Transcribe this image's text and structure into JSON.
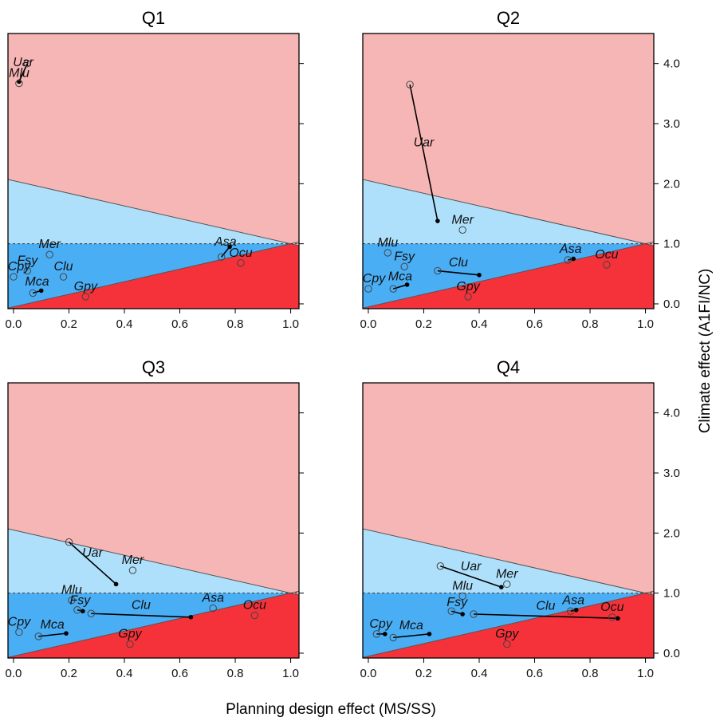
{
  "colors": {
    "region_top": "#f7b6b6",
    "region_light_blue": "#aee0fb",
    "region_blue": "#4aaef5",
    "region_red": "#f5313a",
    "frame": "#000000",
    "ref_line": "#555555"
  },
  "figure": {
    "xlabel": "Planning design effect (MS/SS)",
    "ylabel": "Climate effect (A1FI/NC)"
  },
  "chart_data": [
    {
      "type": "scatter",
      "title": "Q1",
      "xlim": [
        -0.02,
        1.03
      ],
      "ylim": [
        -0.08,
        4.5
      ],
      "xticks": [
        "0.0",
        "0.2",
        "0.4",
        "0.6",
        "0.8",
        "1.0"
      ],
      "yticks": [
        "0.0",
        "1.0",
        "2.0",
        "3.0",
        "4.0"
      ],
      "reference_lines": {
        "upper": [
          [
            0,
            2.05
          ],
          [
            1,
            1
          ]
        ],
        "lower": [
          [
            0,
            -0.05
          ],
          [
            1,
            1
          ]
        ],
        "dashed_y": 1.0
      },
      "species": [
        {
          "label": "Uar",
          "ms": [
            0.02,
            3.7
          ],
          "ss": [
            0.05,
            4.0
          ]
        },
        {
          "label": "Mlu",
          "ms": [
            0.02,
            3.67
          ],
          "ss": [
            0.02,
            3.67
          ]
        },
        {
          "label": "Mer",
          "ms": [
            0.13,
            0.82
          ],
          "ss": [
            0.13,
            0.82
          ]
        },
        {
          "label": "Fsy",
          "ms": [
            0.05,
            0.55
          ],
          "ss": [
            0.05,
            0.55
          ]
        },
        {
          "label": "Cpy",
          "ms": [
            0.0,
            0.45
          ],
          "ss": [
            0.0,
            0.45
          ]
        },
        {
          "label": "Clu",
          "ms": [
            0.18,
            0.45
          ],
          "ss": [
            0.18,
            0.45
          ]
        },
        {
          "label": "Mca",
          "ms": [
            0.1,
            0.22
          ],
          "ss": [
            0.07,
            0.18
          ]
        },
        {
          "label": "Gpy",
          "ms": [
            0.26,
            0.12
          ],
          "ss": [
            0.26,
            0.12
          ]
        },
        {
          "label": "Asa",
          "ms": [
            0.78,
            0.95
          ],
          "ss": [
            0.75,
            0.78
          ]
        },
        {
          "label": "Ocu",
          "ms": [
            0.82,
            0.68
          ],
          "ss": [
            0.82,
            0.68
          ]
        }
      ]
    },
    {
      "type": "scatter",
      "title": "Q2",
      "xlim": [
        -0.02,
        1.03
      ],
      "ylim": [
        -0.08,
        4.5
      ],
      "xticks": [
        "0.0",
        "0.2",
        "0.4",
        "0.6",
        "0.8",
        "1.0"
      ],
      "yticks": [
        "0.0",
        "1.0",
        "2.0",
        "3.0",
        "4.0"
      ],
      "reference_lines": {
        "upper": [
          [
            0,
            2.05
          ],
          [
            1,
            1
          ]
        ],
        "lower": [
          [
            0,
            -0.05
          ],
          [
            1,
            1
          ]
        ],
        "dashed_y": 1.0
      },
      "species": [
        {
          "label": "Uar",
          "ms": [
            0.25,
            1.38
          ],
          "ss": [
            0.15,
            3.65
          ]
        },
        {
          "label": "Mer",
          "ms": [
            0.34,
            1.23
          ],
          "ss": [
            0.34,
            1.23
          ]
        },
        {
          "label": "Mlu",
          "ms": [
            0.07,
            0.85
          ],
          "ss": [
            0.07,
            0.85
          ]
        },
        {
          "label": "Fsy",
          "ms": [
            0.13,
            0.62
          ],
          "ss": [
            0.13,
            0.62
          ]
        },
        {
          "label": "Clu",
          "ms": [
            0.4,
            0.48
          ],
          "ss": [
            0.25,
            0.55
          ]
        },
        {
          "label": "Cpy",
          "ms": [
            0.0,
            0.25
          ],
          "ss": [
            0.0,
            0.25
          ]
        },
        {
          "label": "Mca",
          "ms": [
            0.14,
            0.32
          ],
          "ss": [
            0.09,
            0.25
          ]
        },
        {
          "label": "Gpy",
          "ms": [
            0.36,
            0.12
          ],
          "ss": [
            0.36,
            0.12
          ]
        },
        {
          "label": "Asa",
          "ms": [
            0.74,
            0.75
          ],
          "ss": [
            0.72,
            0.73
          ]
        },
        {
          "label": "Ocu",
          "ms": [
            0.86,
            0.65
          ],
          "ss": [
            0.86,
            0.65
          ]
        }
      ]
    },
    {
      "type": "scatter",
      "title": "Q3",
      "xlim": [
        -0.02,
        1.03
      ],
      "ylim": [
        -0.08,
        4.5
      ],
      "xticks": [
        "0.0",
        "0.2",
        "0.4",
        "0.6",
        "0.8",
        "1.0"
      ],
      "yticks": [
        "0.0",
        "1.0",
        "2.0",
        "3.0",
        "4.0"
      ],
      "reference_lines": {
        "upper": [
          [
            0,
            2.05
          ],
          [
            1,
            1
          ]
        ],
        "lower": [
          [
            0,
            -0.05
          ],
          [
            1,
            1
          ]
        ],
        "dashed_y": 1.0
      },
      "species": [
        {
          "label": "Uar",
          "ms": [
            0.37,
            1.15
          ],
          "ss": [
            0.2,
            1.85
          ]
        },
        {
          "label": "Mer",
          "ms": [
            0.43,
            1.38
          ],
          "ss": [
            0.43,
            1.38
          ]
        },
        {
          "label": "Mlu",
          "ms": [
            0.21,
            0.88
          ],
          "ss": [
            0.21,
            0.88
          ]
        },
        {
          "label": "Fsy",
          "ms": [
            0.25,
            0.7
          ],
          "ss": [
            0.23,
            0.72
          ]
        },
        {
          "label": "Clu",
          "ms": [
            0.64,
            0.6
          ],
          "ss": [
            0.28,
            0.66
          ]
        },
        {
          "label": "Asa",
          "ms": [
            0.72,
            0.75
          ],
          "ss": [
            0.72,
            0.75
          ]
        },
        {
          "label": "Ocu",
          "ms": [
            0.87,
            0.63
          ],
          "ss": [
            0.87,
            0.63
          ]
        },
        {
          "label": "Cpy",
          "ms": [
            0.02,
            0.35
          ],
          "ss": [
            0.02,
            0.35
          ]
        },
        {
          "label": "Mca",
          "ms": [
            0.19,
            0.33
          ],
          "ss": [
            0.09,
            0.28
          ]
        },
        {
          "label": "Gpy",
          "ms": [
            0.42,
            0.15
          ],
          "ss": [
            0.42,
            0.15
          ]
        }
      ]
    },
    {
      "type": "scatter",
      "title": "Q4",
      "xlim": [
        -0.02,
        1.03
      ],
      "ylim": [
        -0.08,
        4.5
      ],
      "xticks": [
        "0.0",
        "0.2",
        "0.4",
        "0.6",
        "0.8",
        "1.0"
      ],
      "yticks": [
        "0.0",
        "1.0",
        "2.0",
        "3.0",
        "4.0"
      ],
      "reference_lines": {
        "upper": [
          [
            0,
            2.05
          ],
          [
            1,
            1
          ]
        ],
        "lower": [
          [
            0,
            -0.05
          ],
          [
            1,
            1
          ]
        ],
        "dashed_y": 1.0
      },
      "species": [
        {
          "label": "Uar",
          "ms": [
            0.48,
            1.1
          ],
          "ss": [
            0.26,
            1.45
          ]
        },
        {
          "label": "Mer",
          "ms": [
            0.5,
            1.15
          ],
          "ss": [
            0.5,
            1.15
          ]
        },
        {
          "label": "Mlu",
          "ms": [
            0.34,
            0.95
          ],
          "ss": [
            0.34,
            0.95
          ]
        },
        {
          "label": "Fsy",
          "ms": [
            0.34,
            0.65
          ],
          "ss": [
            0.3,
            0.7
          ]
        },
        {
          "label": "Clu",
          "ms": [
            0.9,
            0.58
          ],
          "ss": [
            0.38,
            0.65
          ]
        },
        {
          "label": "Asa",
          "ms": [
            0.75,
            0.72
          ],
          "ss": [
            0.73,
            0.7
          ]
        },
        {
          "label": "Ocu",
          "ms": [
            0.88,
            0.6
          ],
          "ss": [
            0.88,
            0.6
          ]
        },
        {
          "label": "Cpy",
          "ms": [
            0.06,
            0.32
          ],
          "ss": [
            0.03,
            0.32
          ]
        },
        {
          "label": "Mca",
          "ms": [
            0.22,
            0.32
          ],
          "ss": [
            0.09,
            0.26
          ]
        },
        {
          "label": "Gpy",
          "ms": [
            0.5,
            0.15
          ],
          "ss": [
            0.5,
            0.15
          ]
        }
      ]
    }
  ]
}
